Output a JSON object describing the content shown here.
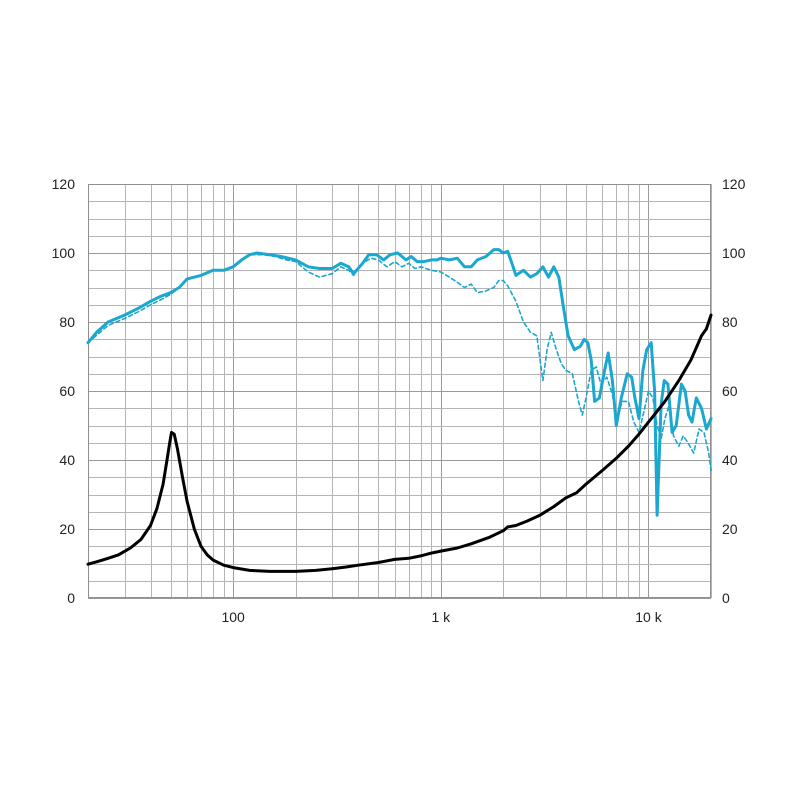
{
  "chart_data": {
    "type": "line",
    "x_scale": "log",
    "xlim": [
      20,
      20000
    ],
    "ylim": [
      0,
      120
    ],
    "y2lim": [
      0,
      120
    ],
    "grid": true,
    "colors": {
      "spl": "#1aa7d0",
      "impedance": "#000000",
      "grid": "#a6a6a6"
    },
    "x_ticks": [
      {
        "value": 100,
        "label": "100"
      },
      {
        "value": 1000,
        "label": "1 k"
      },
      {
        "value": 10000,
        "label": "10 k"
      }
    ],
    "y_ticks": [
      {
        "value": 0,
        "label": "0"
      },
      {
        "value": 20,
        "label": "20"
      },
      {
        "value": 40,
        "label": "40"
      },
      {
        "value": 60,
        "label": "60"
      },
      {
        "value": 80,
        "label": "80"
      },
      {
        "value": 100,
        "label": "100"
      },
      {
        "value": 120,
        "label": "120"
      }
    ],
    "y2_ticks": [
      {
        "value": 0,
        "label": "0"
      },
      {
        "value": 20,
        "label": "20"
      },
      {
        "value": 40,
        "label": "40"
      },
      {
        "value": 60,
        "label": "60"
      },
      {
        "value": 80,
        "label": "80"
      },
      {
        "value": 100,
        "label": "100"
      },
      {
        "value": 120,
        "label": "120"
      }
    ],
    "series": [
      {
        "style": "solid-thick",
        "color": "#1aa7d0",
        "points": [
          [
            20,
            74
          ],
          [
            22,
            77
          ],
          [
            25,
            80
          ],
          [
            30,
            82
          ],
          [
            35,
            84
          ],
          [
            40,
            86
          ],
          [
            45,
            87.5
          ],
          [
            50,
            88.5
          ],
          [
            55,
            90
          ],
          [
            60,
            92.5
          ],
          [
            70,
            93.5
          ],
          [
            80,
            95
          ],
          [
            90,
            95
          ],
          [
            100,
            96
          ],
          [
            110,
            98
          ],
          [
            120,
            99.5
          ],
          [
            130,
            100
          ],
          [
            150,
            99.5
          ],
          [
            170,
            99
          ],
          [
            200,
            98
          ],
          [
            230,
            96
          ],
          [
            260,
            95.5
          ],
          [
            300,
            95.5
          ],
          [
            330,
            97
          ],
          [
            360,
            96
          ],
          [
            380,
            94
          ],
          [
            420,
            97
          ],
          [
            450,
            99.5
          ],
          [
            490,
            99.5
          ],
          [
            530,
            98
          ],
          [
            570,
            99.5
          ],
          [
            620,
            100
          ],
          [
            680,
            98
          ],
          [
            720,
            99
          ],
          [
            770,
            97.5
          ],
          [
            830,
            97.5
          ],
          [
            900,
            98
          ],
          [
            960,
            98
          ],
          [
            1000,
            98.5
          ],
          [
            1100,
            98
          ],
          [
            1200,
            98.5
          ],
          [
            1300,
            96
          ],
          [
            1400,
            96
          ],
          [
            1500,
            98
          ],
          [
            1650,
            99
          ],
          [
            1800,
            101
          ],
          [
            1900,
            101
          ],
          [
            2000,
            100
          ],
          [
            2100,
            100.5
          ],
          [
            2200,
            97
          ],
          [
            2300,
            93.5
          ],
          [
            2500,
            95
          ],
          [
            2700,
            93
          ],
          [
            2900,
            94
          ],
          [
            3100,
            96
          ],
          [
            3300,
            93
          ],
          [
            3500,
            96
          ],
          [
            3700,
            93
          ],
          [
            3900,
            84
          ],
          [
            4100,
            76
          ],
          [
            4400,
            72
          ],
          [
            4700,
            73
          ],
          [
            4900,
            75
          ],
          [
            5100,
            74
          ],
          [
            5300,
            69
          ],
          [
            5500,
            57
          ],
          [
            5800,
            58
          ],
          [
            6100,
            65
          ],
          [
            6400,
            71
          ],
          [
            6700,
            63
          ],
          [
            7000,
            50
          ],
          [
            7400,
            58
          ],
          [
            7900,
            65
          ],
          [
            8300,
            64
          ],
          [
            8600,
            58
          ],
          [
            9000,
            52
          ],
          [
            9400,
            66
          ],
          [
            9800,
            72
          ],
          [
            10300,
            74
          ],
          [
            10700,
            60
          ],
          [
            11000,
            24
          ],
          [
            11500,
            56
          ],
          [
            11900,
            63
          ],
          [
            12400,
            62
          ],
          [
            13000,
            48
          ],
          [
            13600,
            50
          ],
          [
            14400,
            62
          ],
          [
            15000,
            60
          ],
          [
            15600,
            53
          ],
          [
            16200,
            51
          ],
          [
            17000,
            58
          ],
          [
            18000,
            55
          ],
          [
            19000,
            49
          ],
          [
            20000,
            52
          ]
        ]
      },
      {
        "style": "dashed",
        "color": "#1aa7d0",
        "points": [
          [
            20,
            74
          ],
          [
            25,
            79
          ],
          [
            30,
            81
          ],
          [
            35,
            83
          ],
          [
            40,
            85
          ],
          [
            45,
            86.5
          ],
          [
            50,
            88
          ],
          [
            55,
            90
          ],
          [
            60,
            92.5
          ],
          [
            70,
            93.5
          ],
          [
            80,
            95
          ],
          [
            90,
            95
          ],
          [
            100,
            96
          ],
          [
            110,
            98
          ],
          [
            120,
            99.5
          ],
          [
            140,
            99.5
          ],
          [
            160,
            99
          ],
          [
            180,
            98
          ],
          [
            200,
            97.5
          ],
          [
            230,
            94.5
          ],
          [
            260,
            93
          ],
          [
            300,
            94
          ],
          [
            330,
            96
          ],
          [
            360,
            95
          ],
          [
            380,
            93.5
          ],
          [
            420,
            97
          ],
          [
            460,
            98.5
          ],
          [
            500,
            98
          ],
          [
            550,
            96
          ],
          [
            600,
            97.5
          ],
          [
            650,
            96
          ],
          [
            700,
            97
          ],
          [
            750,
            95.5
          ],
          [
            800,
            96
          ],
          [
            900,
            95
          ],
          [
            1000,
            94.5
          ],
          [
            1100,
            93
          ],
          [
            1200,
            91.5
          ],
          [
            1300,
            90
          ],
          [
            1400,
            91
          ],
          [
            1500,
            88.5
          ],
          [
            1650,
            89
          ],
          [
            1800,
            90
          ],
          [
            1900,
            92
          ],
          [
            2000,
            92
          ],
          [
            2100,
            90.5
          ],
          [
            2300,
            86
          ],
          [
            2500,
            80
          ],
          [
            2700,
            77
          ],
          [
            2900,
            76
          ],
          [
            3100,
            63
          ],
          [
            3250,
            72
          ],
          [
            3400,
            77
          ],
          [
            3600,
            72
          ],
          [
            3800,
            68
          ],
          [
            4000,
            66
          ],
          [
            4300,
            65
          ],
          [
            4600,
            57
          ],
          [
            4800,
            53
          ],
          [
            5000,
            58
          ],
          [
            5300,
            66
          ],
          [
            5600,
            67
          ],
          [
            5900,
            62
          ],
          [
            6300,
            64
          ],
          [
            6700,
            59
          ],
          [
            7000,
            52
          ],
          [
            7500,
            57
          ],
          [
            8000,
            57
          ],
          [
            8500,
            51
          ],
          [
            9000,
            48
          ],
          [
            9500,
            54
          ],
          [
            10000,
            60
          ],
          [
            10500,
            58
          ],
          [
            11000,
            50
          ],
          [
            11500,
            46
          ],
          [
            12000,
            52
          ],
          [
            12600,
            56
          ],
          [
            13200,
            47
          ],
          [
            14000,
            44
          ],
          [
            14700,
            47
          ],
          [
            15500,
            45
          ],
          [
            16500,
            42
          ],
          [
            17500,
            49
          ],
          [
            18500,
            48
          ],
          [
            19500,
            42
          ],
          [
            20000,
            37
          ]
        ]
      },
      {
        "style": "solid-thick",
        "color": "#000000",
        "points": [
          [
            20,
            9.8
          ],
          [
            22,
            10.5
          ],
          [
            25,
            11.5
          ],
          [
            28,
            12.5
          ],
          [
            32,
            14.5
          ],
          [
            36,
            17
          ],
          [
            40,
            21
          ],
          [
            43,
            26
          ],
          [
            46,
            33
          ],
          [
            48,
            40
          ],
          [
            49.5,
            45
          ],
          [
            50.5,
            48
          ],
          [
            52,
            47.5
          ],
          [
            54,
            43
          ],
          [
            57,
            35
          ],
          [
            60,
            28
          ],
          [
            65,
            20
          ],
          [
            70,
            15
          ],
          [
            75,
            12.5
          ],
          [
            80,
            11
          ],
          [
            90,
            9.5
          ],
          [
            100,
            8.8
          ],
          [
            120,
            8
          ],
          [
            150,
            7.7
          ],
          [
            200,
            7.7
          ],
          [
            250,
            8
          ],
          [
            300,
            8.5
          ],
          [
            350,
            9
          ],
          [
            400,
            9.5
          ],
          [
            500,
            10.3
          ],
          [
            600,
            11.2
          ],
          [
            700,
            11.5
          ],
          [
            800,
            12.2
          ],
          [
            900,
            13
          ],
          [
            1000,
            13.6
          ],
          [
            1200,
            14.5
          ],
          [
            1400,
            15.7
          ],
          [
            1700,
            17.5
          ],
          [
            2000,
            19.5
          ],
          [
            2100,
            20.6
          ],
          [
            2300,
            21
          ],
          [
            2600,
            22.3
          ],
          [
            3000,
            24
          ],
          [
            3500,
            26.5
          ],
          [
            4000,
            29
          ],
          [
            4500,
            30.5
          ],
          [
            5000,
            33
          ],
          [
            6000,
            37
          ],
          [
            7000,
            40.5
          ],
          [
            8000,
            44
          ],
          [
            9000,
            47.5
          ],
          [
            10000,
            51
          ],
          [
            12000,
            57
          ],
          [
            14000,
            63
          ],
          [
            16000,
            69
          ],
          [
            18000,
            76
          ],
          [
            19000,
            78
          ],
          [
            19500,
            80
          ],
          [
            20000,
            82
          ]
        ]
      }
    ]
  }
}
